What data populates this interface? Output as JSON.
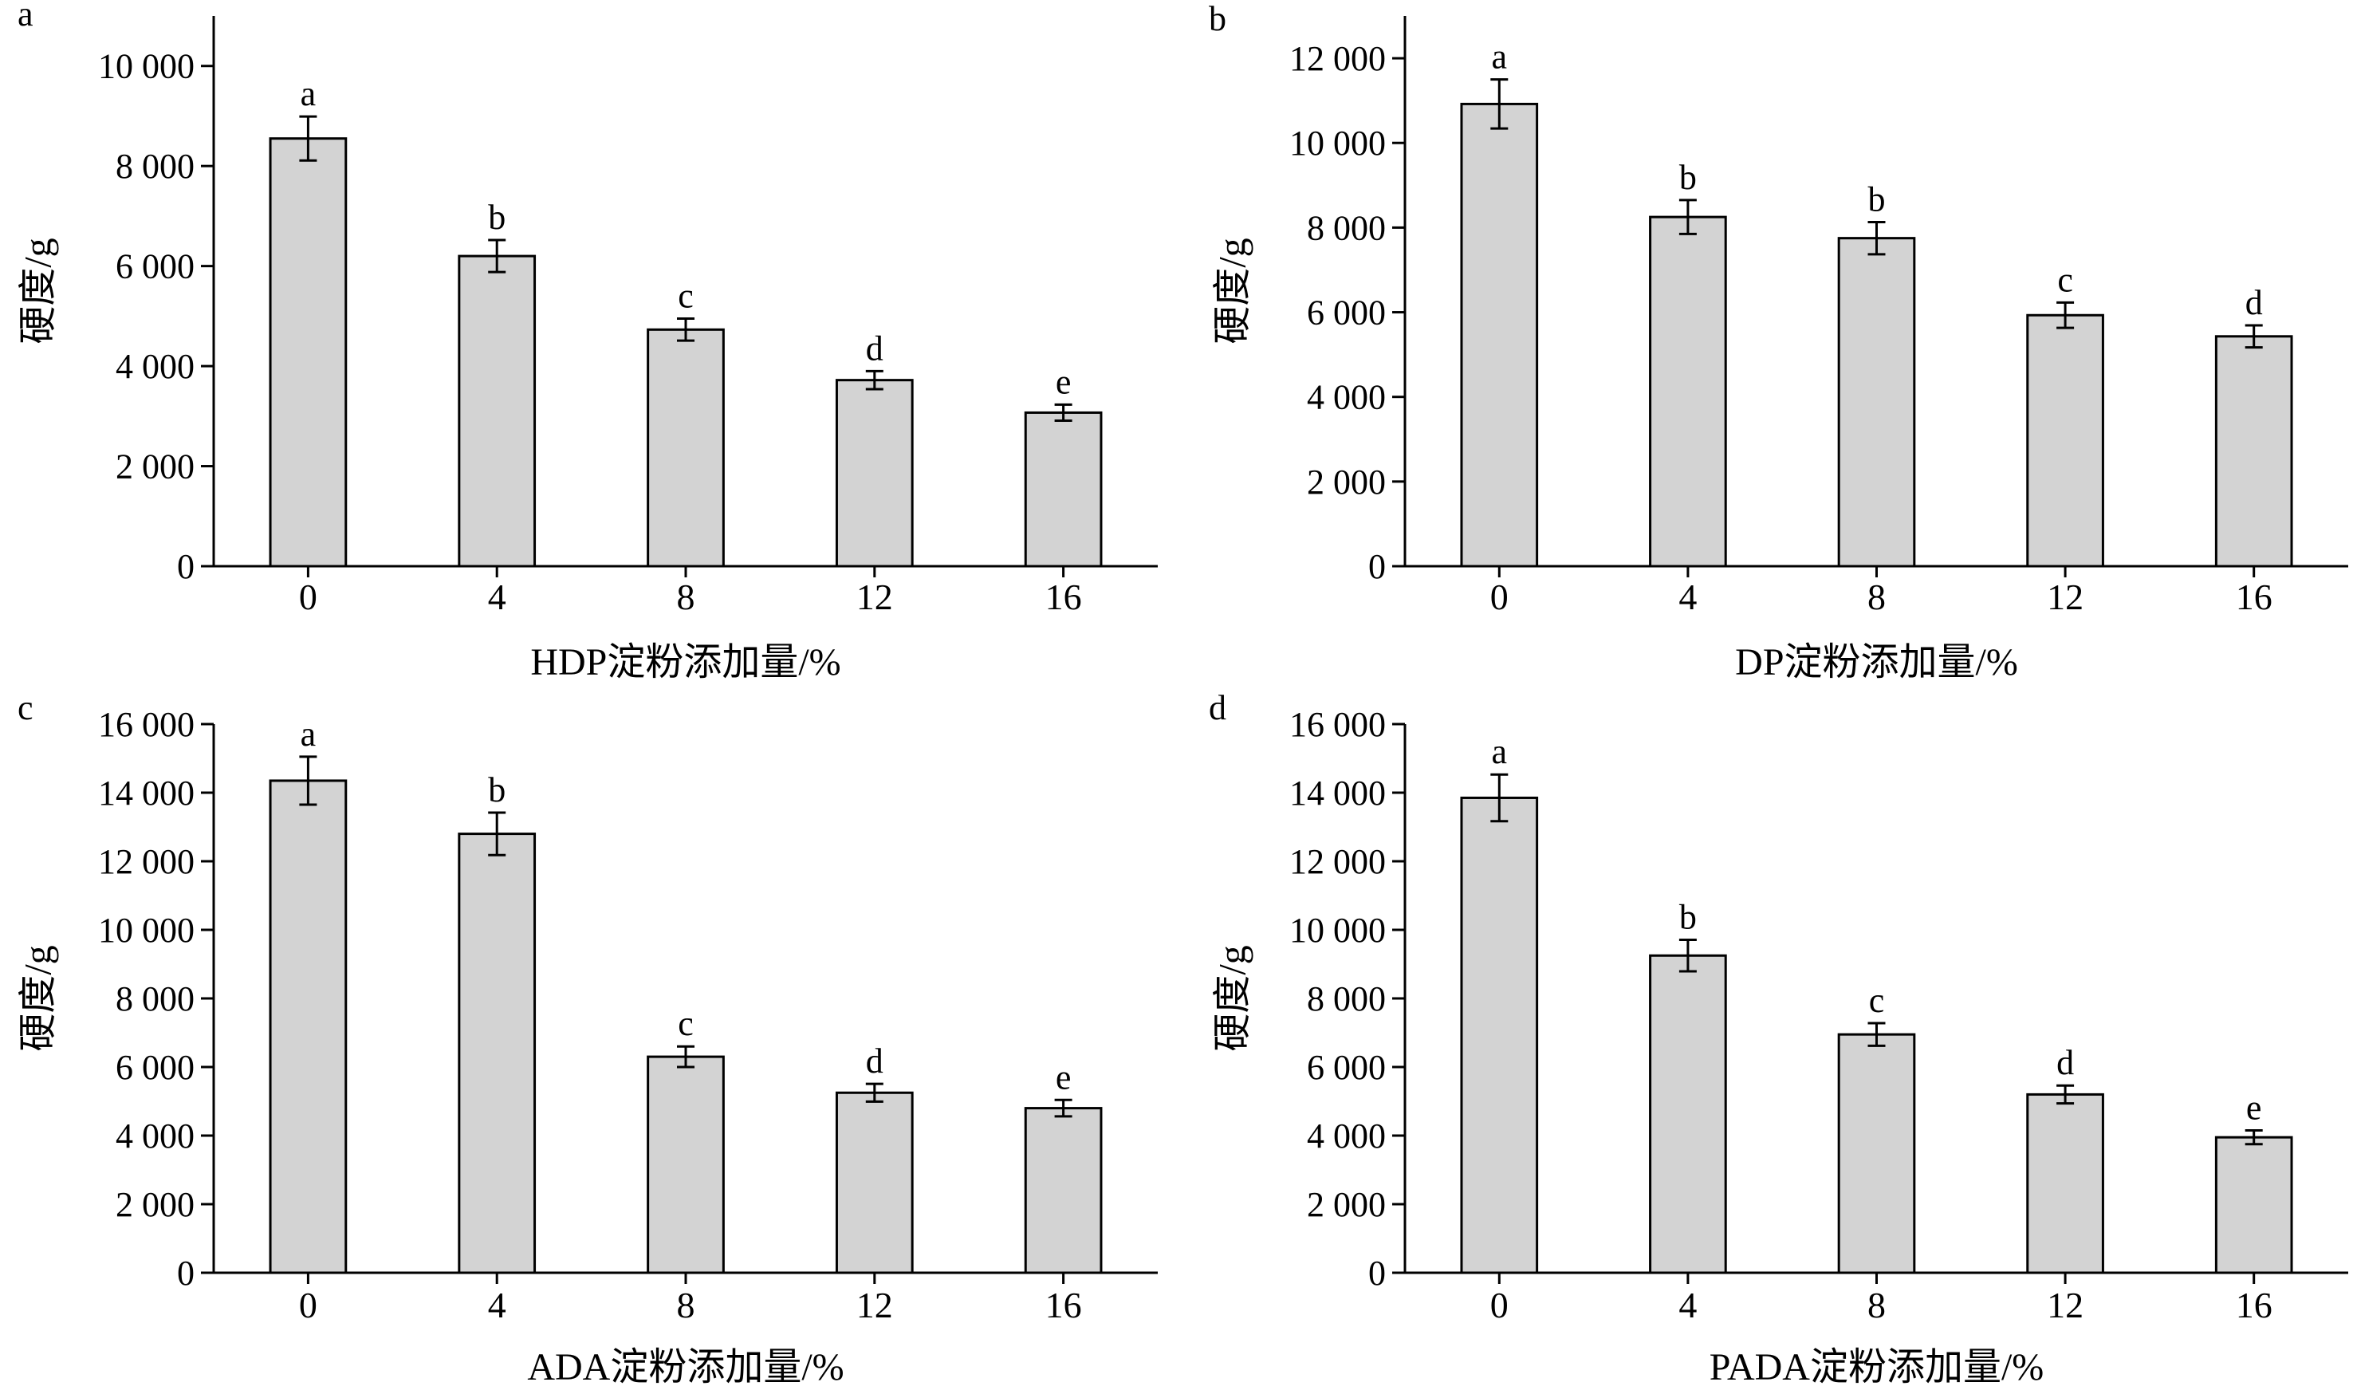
{
  "colors": {
    "bar_fill": "#d3d3d3",
    "bar_stroke": "#000000",
    "axis": "#000000",
    "background": "#ffffff"
  },
  "chart_data": [
    {
      "panel_label": "a",
      "type": "bar",
      "categories": [
        "0",
        "4",
        "8",
        "12",
        "16"
      ],
      "values": [
        8550,
        6200,
        4730,
        3720,
        3070
      ],
      "errors": [
        440,
        320,
        220,
        180,
        160
      ],
      "significance": [
        "a",
        "b",
        "c",
        "d",
        "e"
      ],
      "xlabel": "HDP淀粉添加量/%",
      "ylabel": "硬度/g",
      "ylim": [
        0,
        11000
      ],
      "yticks": [
        0,
        2000,
        4000,
        6000,
        8000,
        10000
      ],
      "ytick_labels": [
        "0",
        "2 000",
        "4 000",
        "6 000",
        "8 000",
        "10 000"
      ]
    },
    {
      "panel_label": "b",
      "type": "bar",
      "categories": [
        "0",
        "4",
        "8",
        "12",
        "16"
      ],
      "values": [
        10920,
        8250,
        7750,
        5930,
        5430
      ],
      "errors": [
        580,
        400,
        380,
        300,
        260
      ],
      "significance": [
        "a",
        "b",
        "b",
        "c",
        "d"
      ],
      "xlabel": "DP淀粉添加量/%",
      "ylabel": "硬度/g",
      "ylim": [
        0,
        13000
      ],
      "yticks": [
        0,
        2000,
        4000,
        6000,
        8000,
        10000,
        12000
      ],
      "ytick_labels": [
        "0",
        "2 000",
        "4 000",
        "6 000",
        "8 000",
        "10 000",
        "12 000"
      ]
    },
    {
      "panel_label": "c",
      "type": "bar",
      "categories": [
        "0",
        "4",
        "8",
        "12",
        "16"
      ],
      "values": [
        14350,
        12800,
        6300,
        5250,
        4800
      ],
      "errors": [
        700,
        620,
        300,
        260,
        240
      ],
      "significance": [
        "a",
        "b",
        "c",
        "d",
        "e"
      ],
      "xlabel": "ADA淀粉添加量/%",
      "ylabel": "硬度/g",
      "ylim": [
        0,
        16000
      ],
      "yticks": [
        0,
        2000,
        4000,
        6000,
        8000,
        10000,
        12000,
        14000,
        16000
      ],
      "ytick_labels": [
        "0",
        "2 000",
        "4 000",
        "6 000",
        "8 000",
        "10 000",
        "12 000",
        "14 000",
        "16 000"
      ]
    },
    {
      "panel_label": "d",
      "type": "bar",
      "categories": [
        "0",
        "4",
        "8",
        "12",
        "16"
      ],
      "values": [
        13850,
        9250,
        6950,
        5200,
        3950
      ],
      "errors": [
        680,
        460,
        330,
        260,
        200
      ],
      "significance": [
        "a",
        "b",
        "c",
        "d",
        "e"
      ],
      "xlabel": "PADA淀粉添加量/%",
      "ylabel": "硬度/g",
      "ylim": [
        0,
        16000
      ],
      "yticks": [
        0,
        2000,
        4000,
        6000,
        8000,
        10000,
        12000,
        14000,
        16000
      ],
      "ytick_labels": [
        "0",
        "2 000",
        "4 000",
        "6 000",
        "8 000",
        "10 000",
        "12 000",
        "14 000",
        "16 000"
      ]
    }
  ]
}
